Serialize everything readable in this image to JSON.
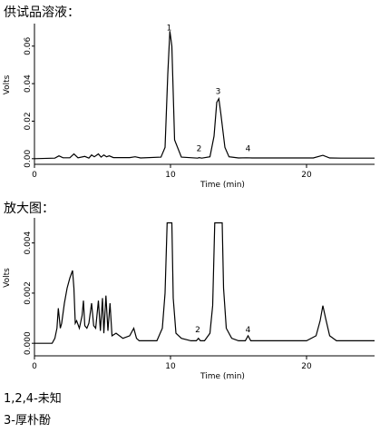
{
  "captions": {
    "top": "供试品溶液：",
    "bottom": "放大图："
  },
  "legend": [
    "1,2,4-未知",
    "3-厚朴酚"
  ],
  "chart_data": [
    {
      "type": "line",
      "xlabel": "Time (min)",
      "ylabel": "Volts",
      "xlim": [
        0,
        25
      ],
      "ylim": [
        -0.003,
        0.072
      ],
      "xticks": [
        0,
        10,
        20
      ],
      "yticks": [
        0.0,
        0.02,
        0.04,
        0.06
      ],
      "ytick_labels": [
        "0.00",
        "0.02",
        "0.04",
        "0.06"
      ],
      "grid": false,
      "peak_labels": [
        {
          "label": "1",
          "x": 9.9,
          "y": 0.0665
        },
        {
          "label": "2",
          "x": 12.1,
          "y": 0.002
        },
        {
          "label": "3",
          "x": 13.5,
          "y": 0.0325
        },
        {
          "label": "4",
          "x": 15.7,
          "y": 0.002
        }
      ],
      "series": [
        {
          "x": [
            0,
            1.5,
            1.8,
            2.1,
            2.6,
            2.9,
            3.2,
            3.7,
            4.0,
            4.2,
            4.4,
            4.7,
            4.9,
            5.1,
            5.3,
            5.5,
            5.8,
            7.0,
            7.4,
            7.8,
            9.3,
            9.6,
            9.8,
            9.95,
            10.1,
            10.3,
            10.8,
            12.0,
            12.1,
            12.3,
            12.9,
            13.2,
            13.4,
            13.55,
            13.7,
            14.0,
            14.3,
            15.0,
            15.6,
            16.0,
            20.5,
            21.2,
            21.7,
            22.5,
            25
          ],
          "y": [
            0,
            0.0003,
            0.0015,
            0.0005,
            0.0005,
            0.0025,
            0.0005,
            0.0012,
            0.0003,
            0.002,
            0.001,
            0.0025,
            0.0008,
            0.002,
            0.001,
            0.0015,
            0.0006,
            0.0006,
            0.001,
            0.0004,
            0.0008,
            0.006,
            0.045,
            0.068,
            0.06,
            0.01,
            0.0008,
            0.0003,
            0.0006,
            0.0003,
            0.001,
            0.012,
            0.03,
            0.032,
            0.024,
            0.006,
            0.001,
            0.0004,
            0.0005,
            0.0004,
            0.0004,
            0.0018,
            0.0004,
            0.0003,
            0.0003
          ]
        }
      ]
    },
    {
      "type": "line",
      "xlabel": "Time (min)",
      "ylabel": "Volts",
      "xlim": [
        0,
        25
      ],
      "ylim": [
        -0.0005,
        0.005
      ],
      "xticks": [
        0,
        10,
        20
      ],
      "yticks": [
        0.0,
        0.002,
        0.004
      ],
      "ytick_labels": [
        "0.000",
        "0.002",
        "0.004"
      ],
      "grid": false,
      "peak_labels": [
        {
          "label": "2",
          "x": 12.0,
          "y": 0.0003
        },
        {
          "label": "4",
          "x": 15.7,
          "y": 0.0003
        }
      ],
      "series": [
        {
          "x": [
            0,
            1.3,
            1.5,
            1.65,
            1.75,
            1.9,
            2.0,
            2.2,
            2.4,
            2.6,
            2.8,
            2.9,
            3.0,
            3.1,
            3.3,
            3.5,
            3.6,
            3.7,
            3.85,
            4.0,
            4.2,
            4.35,
            4.5,
            4.7,
            4.85,
            5.0,
            5.1,
            5.25,
            5.4,
            5.55,
            5.7,
            6.0,
            6.5,
            7.0,
            7.3,
            7.5,
            7.7,
            8.0,
            9.0,
            9.4,
            9.6,
            9.75,
            10.1,
            10.2,
            10.4,
            10.8,
            11.5,
            11.9,
            12.05,
            12.2,
            12.5,
            12.9,
            13.1,
            13.25,
            13.8,
            13.9,
            14.1,
            14.5,
            15.0,
            15.5,
            15.7,
            15.9,
            16.5,
            18.0,
            20.0,
            20.7,
            21.0,
            21.2,
            21.4,
            21.7,
            22.2,
            25
          ],
          "y": [
            0,
            0.0,
            0.0002,
            0.0006,
            0.0014,
            0.0006,
            0.0008,
            0.0016,
            0.0022,
            0.0026,
            0.0029,
            0.0022,
            0.0008,
            0.0009,
            0.0006,
            0.0011,
            0.0017,
            0.0007,
            0.0006,
            0.0008,
            0.0016,
            0.0007,
            0.0006,
            0.0017,
            0.0005,
            0.0018,
            0.0004,
            0.0019,
            0.0005,
            0.0016,
            0.0003,
            0.0004,
            0.0002,
            0.0003,
            0.0006,
            0.0002,
            0.0001,
            0.0001,
            0.0001,
            0.0006,
            0.002,
            0.0048,
            0.0048,
            0.0018,
            0.0004,
            0.0002,
            0.0001,
            0.0001,
            0.0002,
            0.0001,
            0.0001,
            0.0004,
            0.0015,
            0.0048,
            0.0048,
            0.0022,
            0.0006,
            0.0002,
            0.0001,
            0.0001,
            0.0003,
            0.0001,
            0.0001,
            0.0001,
            0.0001,
            0.0003,
            0.0009,
            0.0015,
            0.001,
            0.0003,
            0.0001,
            0.0001
          ]
        }
      ]
    }
  ]
}
